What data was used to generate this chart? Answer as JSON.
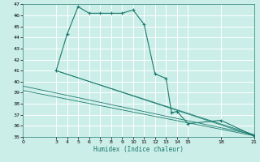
{
  "title": "",
  "xlabel": "Humidex (Indice chaleur)",
  "bg_color": "#cceee8",
  "grid_color": "#ffffff",
  "line_color": "#1a7a6e",
  "xlim": [
    0,
    21
  ],
  "ylim": [
    35,
    47
  ],
  "yticks": [
    35,
    36,
    37,
    38,
    39,
    40,
    41,
    42,
    43,
    44,
    45,
    46,
    47
  ],
  "xticks": [
    0,
    3,
    4,
    5,
    6,
    7,
    8,
    9,
    10,
    11,
    12,
    13,
    14,
    15,
    18,
    21
  ],
  "main_x": [
    3,
    4,
    5,
    6,
    7,
    8,
    9,
    10,
    11,
    12,
    13,
    13.5,
    14,
    15,
    18,
    21
  ],
  "main_y": [
    41.0,
    44.3,
    46.8,
    46.2,
    46.2,
    46.2,
    46.2,
    46.5,
    45.2,
    40.7,
    40.3,
    37.2,
    37.3,
    36.2,
    36.5,
    35.1
  ],
  "line1_x": [
    0,
    21
  ],
  "line1_y": [
    35.0,
    35.0
  ],
  "line2_x": [
    0,
    21
  ],
  "line2_y": [
    39.6,
    35.2
  ],
  "line3_x": [
    0,
    21
  ],
  "line3_y": [
    39.2,
    35.1
  ],
  "line4_x": [
    3,
    21
  ],
  "line4_y": [
    41.0,
    35.2
  ],
  "line5_x": [
    3,
    21
  ],
  "line5_y": [
    41.0,
    35.1
  ]
}
